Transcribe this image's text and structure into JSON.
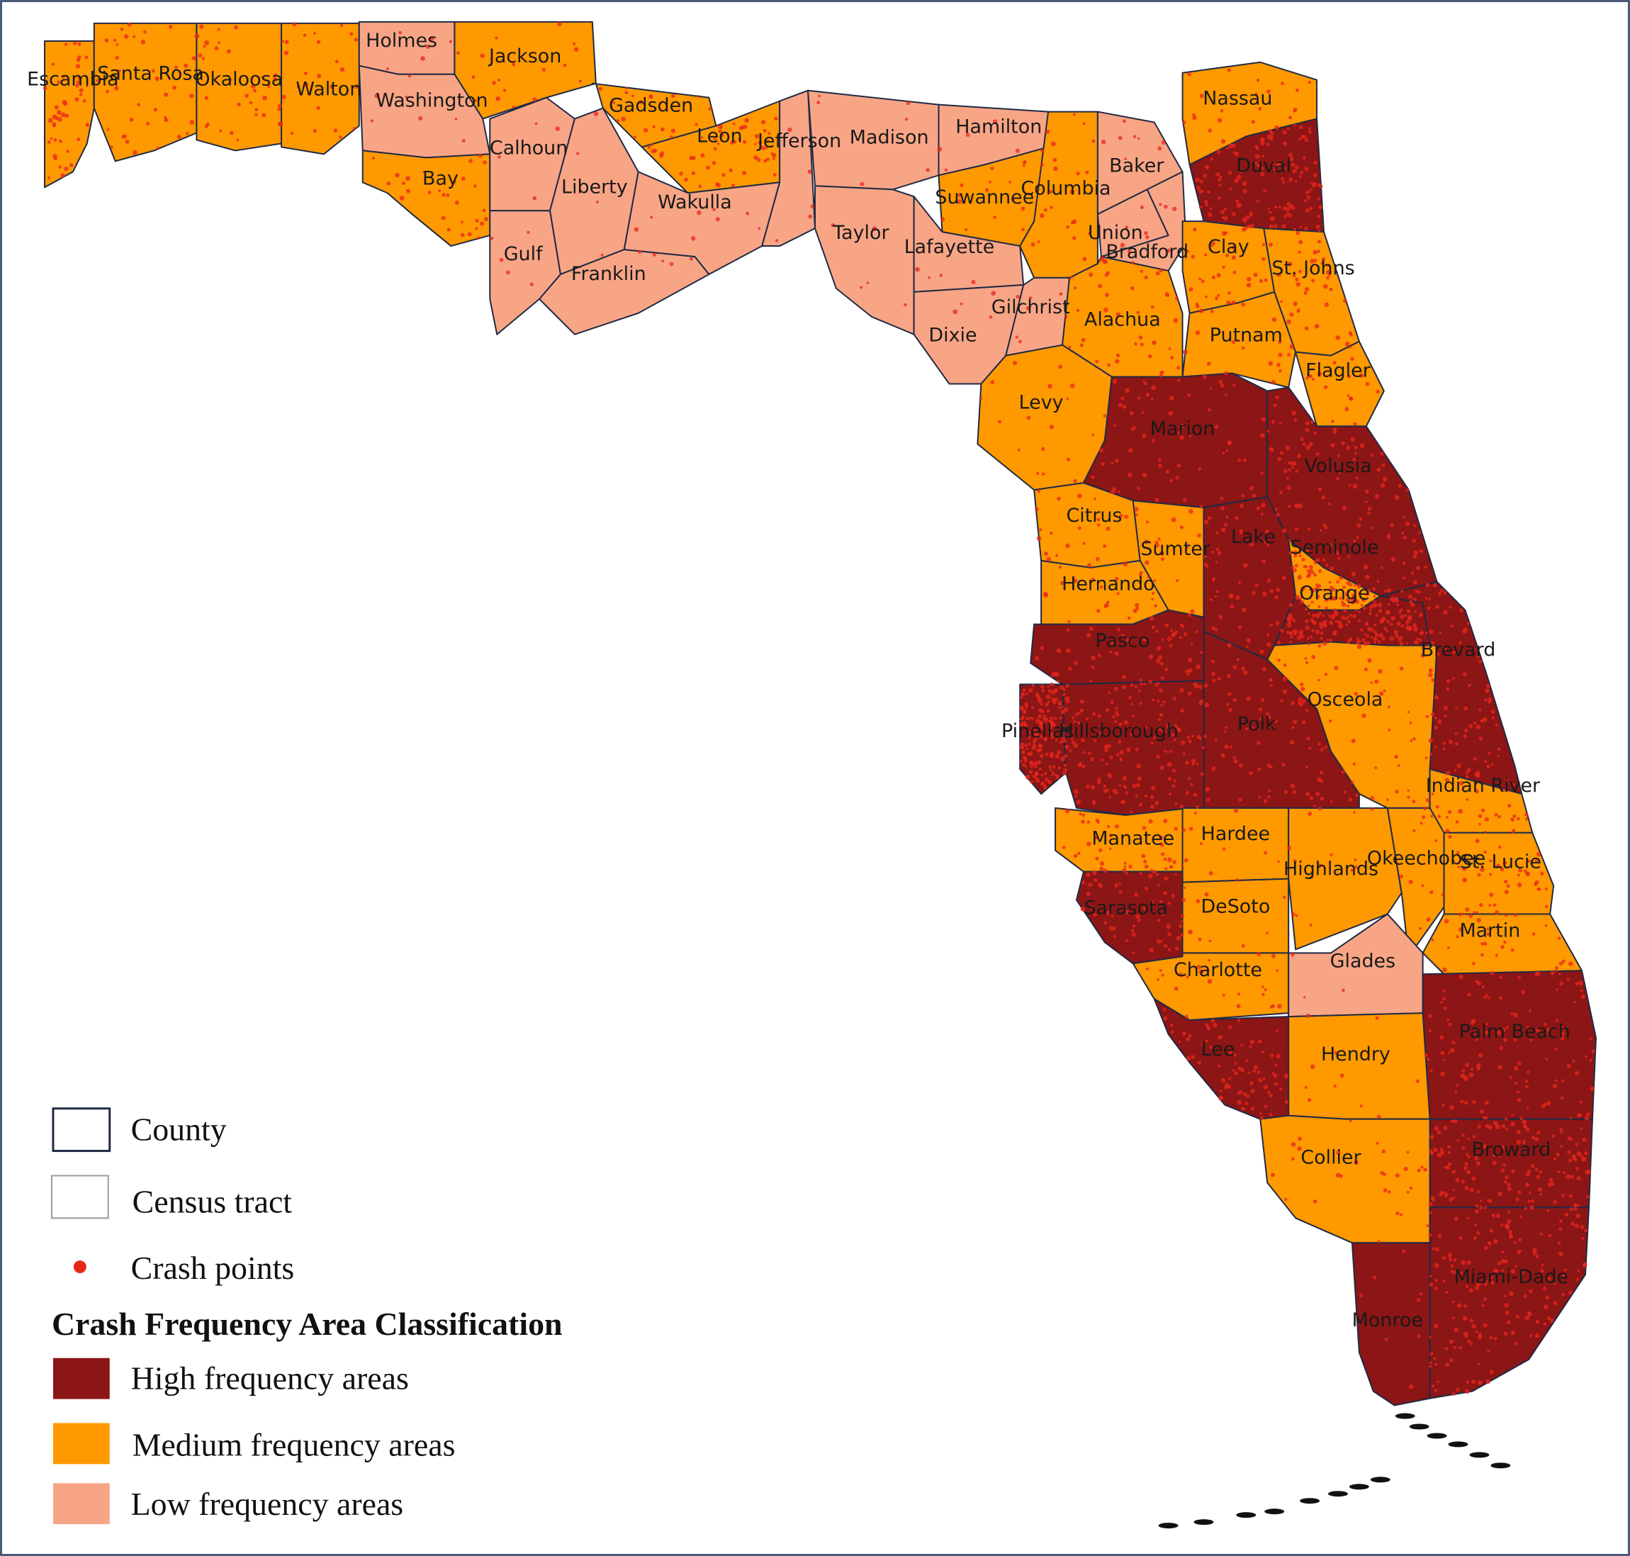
{
  "legend": {
    "county": "County",
    "census_tract": "Census tract",
    "crash_points": "Crash points",
    "title": "Crash Frequency Area Classification",
    "high": "High frequency areas",
    "medium": "Medium frequency areas",
    "low": "Low frequency areas"
  },
  "colors": {
    "high": "#8c1515",
    "medium": "#ff9900",
    "low": "#f8a586",
    "crash_point": "#e8271c",
    "county_border": "#1f2a44",
    "tract_border": "#9a9a9a"
  },
  "counties": [
    {
      "name": "Escambia",
      "class": "medium"
    },
    {
      "name": "Santa Rosa",
      "class": "medium"
    },
    {
      "name": "Okaloosa",
      "class": "medium"
    },
    {
      "name": "Walton",
      "class": "medium"
    },
    {
      "name": "Holmes",
      "class": "low"
    },
    {
      "name": "Washington",
      "class": "low"
    },
    {
      "name": "Jackson",
      "class": "medium"
    },
    {
      "name": "Bay",
      "class": "medium"
    },
    {
      "name": "Calhoun",
      "class": "low"
    },
    {
      "name": "Gulf",
      "class": "low"
    },
    {
      "name": "Liberty",
      "class": "low"
    },
    {
      "name": "Franklin",
      "class": "low"
    },
    {
      "name": "Gadsden",
      "class": "medium"
    },
    {
      "name": "Leon",
      "class": "medium"
    },
    {
      "name": "Wakulla",
      "class": "low"
    },
    {
      "name": "Jefferson",
      "class": "low"
    },
    {
      "name": "Madison",
      "class": "low"
    },
    {
      "name": "Taylor",
      "class": "low"
    },
    {
      "name": "Hamilton",
      "class": "low"
    },
    {
      "name": "Suwannee",
      "class": "medium"
    },
    {
      "name": "Lafayette",
      "class": "low"
    },
    {
      "name": "Dixie",
      "class": "low"
    },
    {
      "name": "Columbia",
      "class": "medium"
    },
    {
      "name": "Baker",
      "class": "low"
    },
    {
      "name": "Union",
      "class": "low"
    },
    {
      "name": "Bradford",
      "class": "low"
    },
    {
      "name": "Gilchrist",
      "class": "low"
    },
    {
      "name": "Alachua",
      "class": "medium"
    },
    {
      "name": "Levy",
      "class": "medium"
    },
    {
      "name": "Nassau",
      "class": "medium"
    },
    {
      "name": "Duval",
      "class": "high"
    },
    {
      "name": "Clay",
      "class": "medium"
    },
    {
      "name": "St. Johns",
      "class": "medium"
    },
    {
      "name": "Putnam",
      "class": "medium"
    },
    {
      "name": "Flagler",
      "class": "medium"
    },
    {
      "name": "Marion",
      "class": "high"
    },
    {
      "name": "Volusia",
      "class": "high"
    },
    {
      "name": "Citrus",
      "class": "medium"
    },
    {
      "name": "Sumter",
      "class": "medium"
    },
    {
      "name": "Lake",
      "class": "high"
    },
    {
      "name": "Seminole",
      "class": "medium"
    },
    {
      "name": "Orange",
      "class": "high"
    },
    {
      "name": "Hernando",
      "class": "medium"
    },
    {
      "name": "Brevard",
      "class": "high"
    },
    {
      "name": "Pasco",
      "class": "high"
    },
    {
      "name": "Osceola",
      "class": "medium"
    },
    {
      "name": "Pinellas",
      "class": "high"
    },
    {
      "name": "Hillsborough",
      "class": "high"
    },
    {
      "name": "Polk",
      "class": "high"
    },
    {
      "name": "Indian River",
      "class": "medium"
    },
    {
      "name": "Manatee",
      "class": "medium"
    },
    {
      "name": "Hardee",
      "class": "medium"
    },
    {
      "name": "Highlands",
      "class": "medium"
    },
    {
      "name": "Okeechobee",
      "class": "medium"
    },
    {
      "name": "St. Lucie",
      "class": "medium"
    },
    {
      "name": "Sarasota",
      "class": "high"
    },
    {
      "name": "DeSoto",
      "class": "medium"
    },
    {
      "name": "Martin",
      "class": "medium"
    },
    {
      "name": "Charlotte",
      "class": "medium"
    },
    {
      "name": "Glades",
      "class": "low"
    },
    {
      "name": "Palm Beach",
      "class": "high"
    },
    {
      "name": "Lee",
      "class": "high"
    },
    {
      "name": "Hendry",
      "class": "medium"
    },
    {
      "name": "Broward",
      "class": "high"
    },
    {
      "name": "Collier",
      "class": "medium"
    },
    {
      "name": "Miami-Dade",
      "class": "high"
    },
    {
      "name": "Monroe",
      "class": "high"
    }
  ]
}
